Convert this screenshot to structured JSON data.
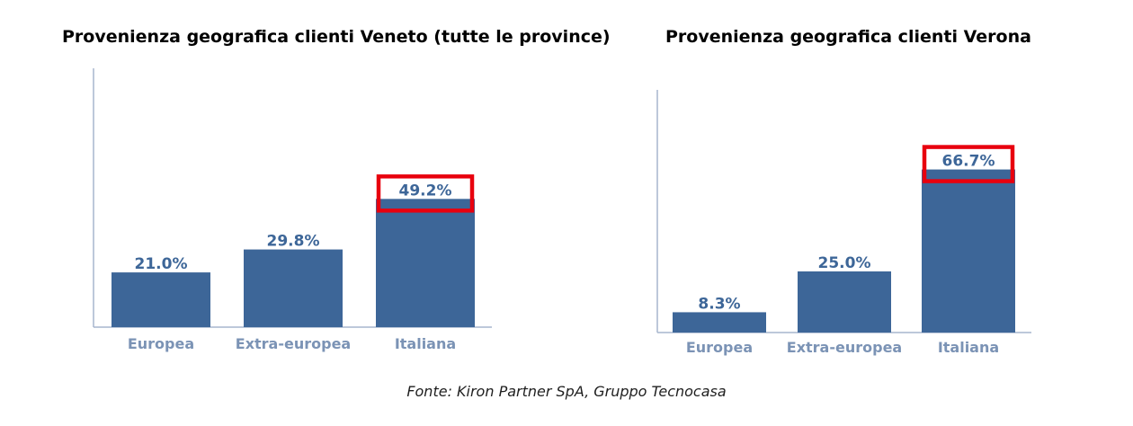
{
  "colors": {
    "bar": "#3d6698",
    "bar_label": "#3d6698",
    "axis": "#a7b6cd",
    "category_label": "#7b93b5",
    "highlight": "#e8000e"
  },
  "chart_data": [
    {
      "type": "bar",
      "title": "Provenienza geografica clienti Veneto (tutte le province)",
      "categories": [
        "Europea",
        "Extra-europea",
        "Italiana"
      ],
      "values": [
        21.0,
        29.8,
        49.2
      ],
      "value_labels": [
        "21.0%",
        "29.8%",
        "49.2%"
      ],
      "highlighted": "Italiana",
      "grid": false
    },
    {
      "type": "bar",
      "title": "Provenienza geografica clienti Verona",
      "categories": [
        "Europea",
        "Extra-europea",
        "Italiana"
      ],
      "values": [
        8.3,
        25.0,
        66.7
      ],
      "value_labels": [
        "8.3%",
        "25.0%",
        "66.7%"
      ],
      "highlighted": "Italiana",
      "grid": false
    }
  ],
  "source": "Fonte: Kiron Partner SpA, Gruppo Tecnocasa"
}
